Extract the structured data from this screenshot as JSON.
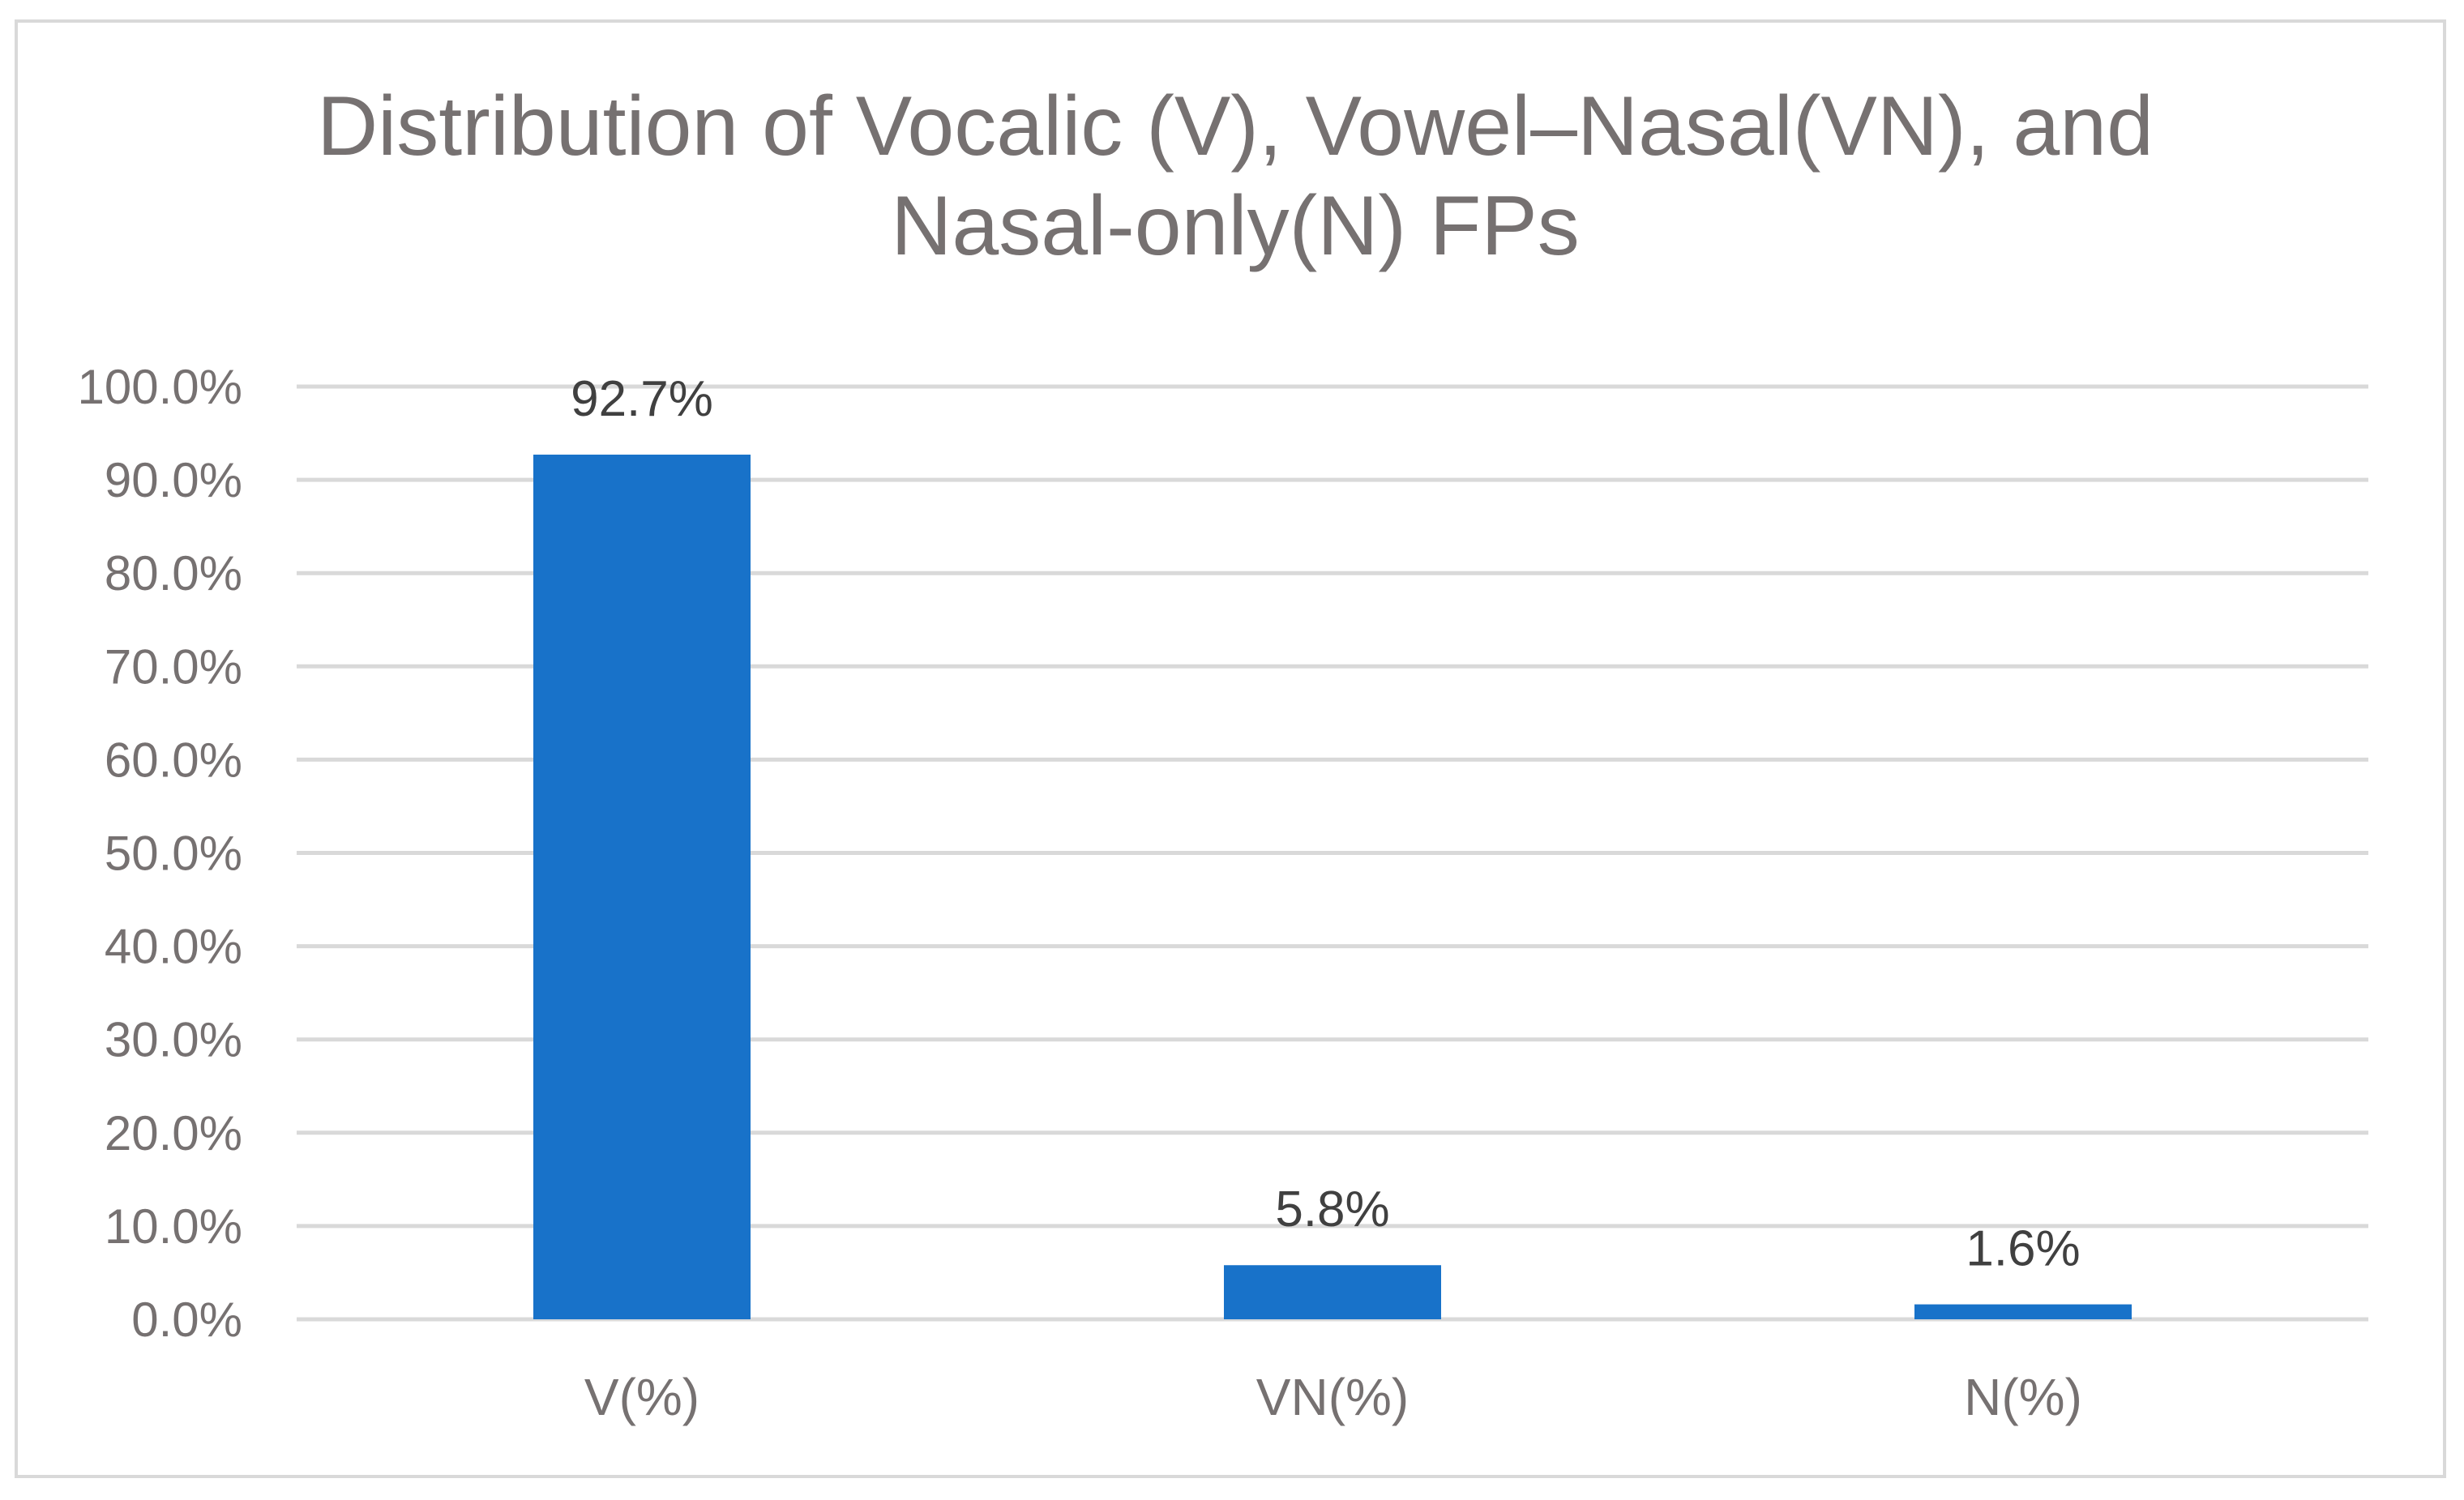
{
  "chart_data": {
    "type": "bar",
    "title_lines": [
      "Distribution of Vocalic (V), Vowel–Nasal(VN), and",
      "Nasal-only(N) FPs"
    ],
    "categories": [
      "V(%)",
      "VN(%)",
      "N(%)"
    ],
    "values": [
      92.7,
      5.8,
      1.6
    ],
    "data_labels": [
      "92.7%",
      "5.8%",
      "1.6%"
    ],
    "ylim": [
      0,
      100
    ],
    "yticks": [
      0,
      10,
      20,
      30,
      40,
      50,
      60,
      70,
      80,
      90,
      100
    ],
    "ytick_labels": [
      "0.0%",
      "10.0%",
      "20.0%",
      "30.0%",
      "40.0%",
      "50.0%",
      "60.0%",
      "70.0%",
      "80.0%",
      "90.0%",
      "100.0%"
    ],
    "grid": true,
    "legend": "none",
    "bar_color": "#1872C9",
    "grid_color": "#D9D9D9",
    "text_color": "#767171"
  }
}
